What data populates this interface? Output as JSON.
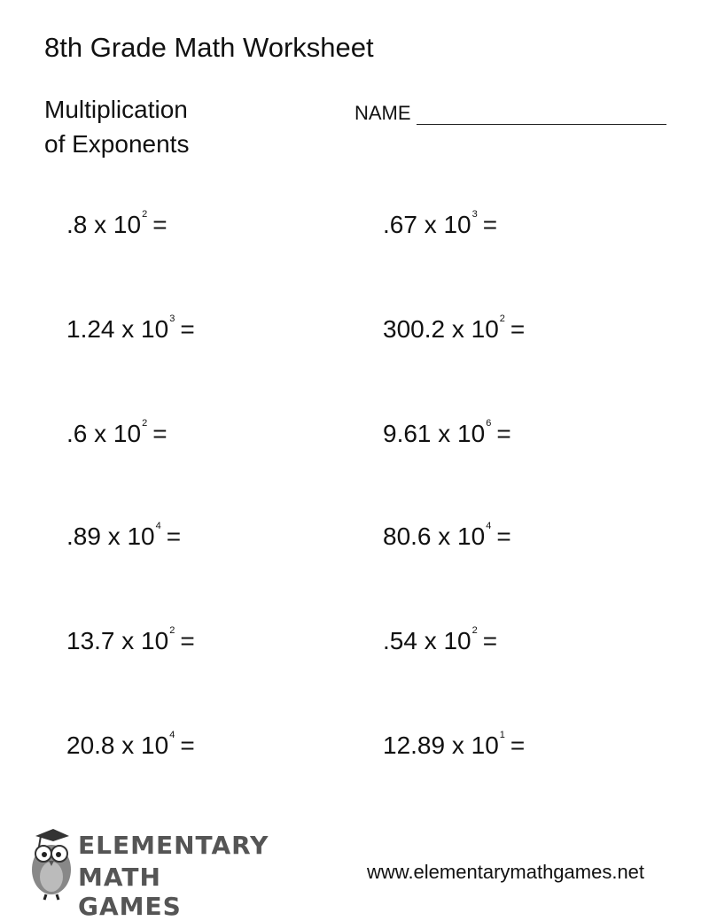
{
  "title": "8th Grade Math Worksheet",
  "subtitle": [
    "Multiplication",
    "of Exponents"
  ],
  "name_label": "NAME",
  "problems": [
    {
      "base": ".8 x 10",
      "exp": "2",
      "eq": "="
    },
    {
      "base": ".67 x 10",
      "exp": "3",
      "eq": "="
    },
    {
      "base": "1.24 x 10",
      "exp": "3",
      "eq": "="
    },
    {
      "base": "300.2 x 10",
      "exp": "2",
      "eq": "="
    },
    {
      "base": ".6 x 10",
      "exp": "2",
      "eq": "="
    },
    {
      "base": "9.61 x 10",
      "exp": "6",
      "eq": "="
    },
    {
      "base": ".89 x 10",
      "exp": "4",
      "eq": "="
    },
    {
      "base": "80.6 x 10",
      "exp": "4",
      "eq": "="
    },
    {
      "base": "13.7 x 10",
      "exp": "2",
      "eq": "="
    },
    {
      "base": ".54  x 10",
      "exp": "2",
      "eq": "="
    },
    {
      "base": "20.8 x 10",
      "exp": "4",
      "eq": "="
    },
    {
      "base": "12.89 x 10",
      "exp": "1",
      "eq": "="
    }
  ],
  "logo": {
    "line1": "ELEMENTARY",
    "line2": "MATH GAMES",
    "icon": "owl-graduate-icon"
  },
  "url": "www.elementarymathgames.net"
}
